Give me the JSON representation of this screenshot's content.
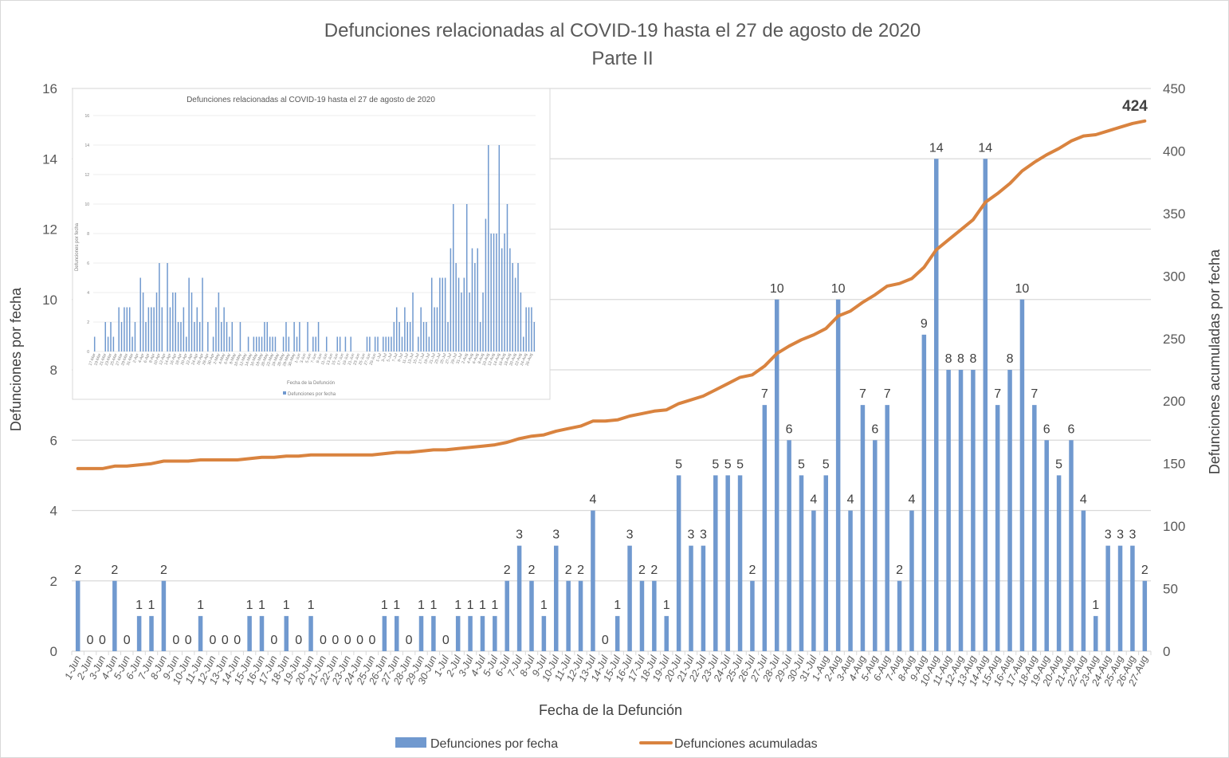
{
  "chart_data": {
    "type": "bar",
    "title": "Defunciones relacionadas al COVID-19 hasta el 27 de agosto de 2020",
    "subtitle": "Parte II",
    "xlabel": "Fecha de la Defunción",
    "ylabel": "Defunciones por fecha",
    "y2label": "Defunciones acumuladas por fecha",
    "ylim": [
      0,
      16
    ],
    "y_ticks": [
      0,
      2,
      4,
      6,
      8,
      10,
      12,
      14,
      16
    ],
    "y2lim": [
      0,
      450
    ],
    "y2_ticks": [
      0,
      50,
      100,
      150,
      200,
      250,
      300,
      350,
      400,
      450
    ],
    "grid": true,
    "legend_position": "bottom",
    "cumulative_start_offset": 144,
    "final_cumulative_label": "424",
    "categories": [
      "1-Jun",
      "2-Jun",
      "3-Jun",
      "4-Jun",
      "5-Jun",
      "6-Jun",
      "7-Jun",
      "8-Jun",
      "9-Jun",
      "10-Jun",
      "11-Jun",
      "12-Jun",
      "13-Jun",
      "14-Jun",
      "15-Jun",
      "16-Jun",
      "17-Jun",
      "18-Jun",
      "19-Jun",
      "20-Jun",
      "21-Jun",
      "22-Jun",
      "23-Jun",
      "24-Jun",
      "25-Jun",
      "26-Jun",
      "27-Jun",
      "28-Jun",
      "29-Jun",
      "30-Jun",
      "1-Jul",
      "2-Jul",
      "3-Jul",
      "4-Jul",
      "5-Jul",
      "6-Jul",
      "7-Jul",
      "8-Jul",
      "9-Jul",
      "10-Jul",
      "11-Jul",
      "12-Jul",
      "13-Jul",
      "14-Jul",
      "15-Jul",
      "16-Jul",
      "17-Jul",
      "18-Jul",
      "19-Jul",
      "20-Jul",
      "21-Jul",
      "22-Jul",
      "23-Jul",
      "24-Jul",
      "25-Jul",
      "26-Jul",
      "27-Jul",
      "28-Jul",
      "29-Jul",
      "30-Jul",
      "31-Jul",
      "1-Aug",
      "2-Aug",
      "3-Aug",
      "4-Aug",
      "5-Aug",
      "6-Aug",
      "7-Aug",
      "8-Aug",
      "9-Aug",
      "10-Aug",
      "11-Aug",
      "12-Aug",
      "13-Aug",
      "14-Aug",
      "15-Aug",
      "16-Aug",
      "17-Aug",
      "18-Aug",
      "19-Aug",
      "20-Aug",
      "21-Aug",
      "22-Aug",
      "23-Aug",
      "24-Aug",
      "25-Aug",
      "26-Aug",
      "27-Aug"
    ],
    "series": [
      {
        "name": "Defunciones por fecha",
        "type": "bar",
        "axis": "left",
        "color": "#7099cf",
        "values": [
          2,
          0,
          0,
          2,
          0,
          1,
          1,
          2,
          0,
          0,
          1,
          0,
          0,
          0,
          1,
          1,
          0,
          1,
          0,
          1,
          0,
          0,
          0,
          0,
          0,
          1,
          1,
          0,
          1,
          1,
          0,
          1,
          1,
          1,
          1,
          2,
          3,
          2,
          1,
          3,
          2,
          2,
          4,
          0,
          1,
          3,
          2,
          2,
          1,
          5,
          3,
          3,
          5,
          5,
          5,
          2,
          7,
          10,
          6,
          5,
          4,
          5,
          10,
          4,
          7,
          6,
          7,
          2,
          4,
          9,
          14,
          8,
          8,
          8,
          14,
          7,
          8,
          10,
          7,
          6,
          5,
          6,
          4,
          1,
          3,
          3,
          3,
          2
        ]
      },
      {
        "name": "Defunciones acumuladas",
        "type": "line",
        "axis": "right",
        "color": "#d9833f",
        "values": "cumulative"
      }
    ],
    "inset": {
      "title": "Defunciones relacionadas al COVID-19 hasta el 27 de agosto de 2020",
      "xlabel": "Fecha de la Defunción",
      "ylabel": "Defunciones por fecha",
      "legend": "Defunciones por fecha",
      "ylim": [
        0,
        16
      ],
      "y_ticks": [
        0,
        2,
        4,
        6,
        8,
        10,
        12,
        14,
        16
      ],
      "start_label": "17-Mar",
      "values": [
        1,
        0,
        0,
        0,
        2,
        1,
        2,
        1,
        0,
        3,
        2,
        3,
        3,
        3,
        1,
        2,
        0,
        5,
        4,
        2,
        3,
        3,
        3,
        4,
        6,
        3,
        0,
        6,
        3,
        4,
        4,
        2,
        2,
        3,
        1,
        5,
        4,
        2,
        3,
        2,
        5,
        0,
        2,
        0,
        1,
        3,
        4,
        2,
        3,
        2,
        1,
        2,
        0,
        0,
        2,
        0,
        0,
        1,
        0,
        1,
        1,
        1,
        1,
        2,
        2,
        1,
        1,
        1,
        0,
        0,
        1,
        2,
        1,
        0,
        2,
        1,
        2,
        0,
        0,
        2,
        0,
        1,
        1,
        2,
        0,
        0,
        1,
        0,
        0,
        0,
        1,
        1,
        0,
        1,
        0,
        1,
        0,
        0,
        0,
        0,
        0,
        1,
        1,
        0,
        1,
        1,
        0,
        1,
        1,
        1,
        1,
        2,
        3,
        2,
        1,
        3,
        2,
        2,
        4,
        0,
        1,
        3,
        2,
        2,
        1,
        5,
        3,
        3,
        5,
        5,
        5,
        2,
        7,
        10,
        6,
        5,
        4,
        5,
        10,
        4,
        7,
        6,
        7,
        2,
        4,
        9,
        14,
        8,
        8,
        8,
        14,
        7,
        8,
        10,
        7,
        6,
        5,
        6,
        4,
        1,
        3,
        3,
        3,
        2
      ]
    }
  }
}
